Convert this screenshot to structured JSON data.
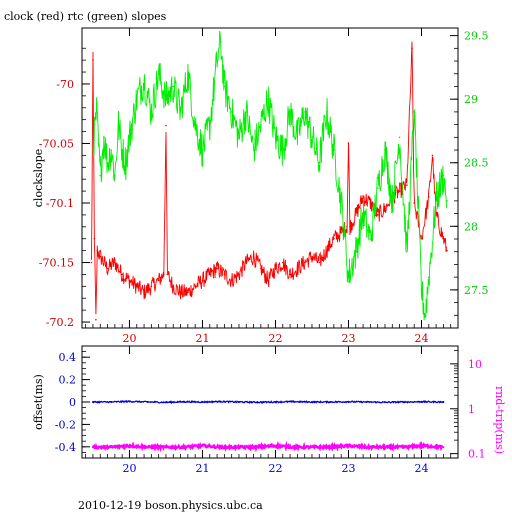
{
  "title": "clock (red) rtc (green) slopes",
  "footer": "2010-12-19  boson.physics.ubc.ca",
  "colors": {
    "clock": "#ff0000",
    "rtc": "#00ee00",
    "offset": "#0000dd",
    "rndtrip": "#ff00ff",
    "top_y_axis": "#cc0000",
    "top_y2_axis": "#00cc00",
    "x_axis_top": "#cc0000",
    "x_axis_bottom": "#0000cc",
    "frame": "#000000"
  },
  "chart_data": [
    {
      "type": "line",
      "title": "clock (red) rtc (green) slopes",
      "ylabel": "clockslope",
      "y2label": "",
      "grid": false,
      "xlim": [
        19.35,
        24.5
      ],
      "ylim": [
        -70.205,
        -69.953
      ],
      "y2lim": [
        27.2,
        29.56
      ],
      "x_ticks": [
        "20",
        "21",
        "22",
        "23",
        "24"
      ],
      "y_ticks": [
        "-70",
        "-70.05",
        "-70.1",
        "-70.15",
        "-70.2"
      ],
      "y2_ticks": [
        "29.5",
        "29",
        "28.5",
        "28",
        "27.5"
      ],
      "series": [
        {
          "axis": "left",
          "x": [
            19.48,
            19.5,
            19.52,
            19.54,
            19.56,
            19.6,
            19.7,
            19.8,
            19.9,
            20.0,
            20.1,
            20.2,
            20.3,
            20.4,
            20.47,
            20.5,
            20.52,
            20.6,
            20.7,
            20.8,
            20.9,
            21.0,
            21.1,
            21.2,
            21.3,
            21.4,
            21.5,
            21.6,
            21.7,
            21.8,
            21.9,
            22.0,
            22.1,
            22.2,
            22.3,
            22.4,
            22.5,
            22.6,
            22.7,
            22.8,
            22.9,
            22.98,
            23.0,
            23.02,
            23.1,
            23.2,
            23.3,
            23.4,
            23.5,
            23.6,
            23.7,
            23.8,
            23.87,
            23.9,
            24.0,
            24.1,
            24.15,
            24.2,
            24.3,
            24.35
          ],
          "values": [
            -70.15,
            -69.98,
            -70.13,
            -70.198,
            -70.14,
            -70.145,
            -70.155,
            -70.15,
            -70.16,
            -70.165,
            -70.17,
            -70.175,
            -70.17,
            -70.165,
            -70.16,
            -70.035,
            -70.16,
            -70.17,
            -70.175,
            -70.175,
            -70.17,
            -70.165,
            -70.16,
            -70.155,
            -70.16,
            -70.165,
            -70.16,
            -70.15,
            -70.145,
            -70.155,
            -70.165,
            -70.155,
            -70.15,
            -70.16,
            -70.155,
            -70.15,
            -70.145,
            -70.15,
            -70.14,
            -70.13,
            -70.125,
            -70.12,
            -70.05,
            -70.12,
            -70.11,
            -70.095,
            -70.1,
            -70.11,
            -70.105,
            -70.095,
            -70.09,
            -70.085,
            -69.97,
            -70.1,
            -70.13,
            -70.095,
            -70.06,
            -70.11,
            -70.13,
            -70.14
          ]
        },
        {
          "axis": "right",
          "x": [
            19.5,
            19.55,
            19.6,
            19.65,
            19.7,
            19.75,
            19.8,
            19.85,
            19.9,
            19.95,
            20.0,
            20.1,
            20.2,
            20.3,
            20.4,
            20.5,
            20.6,
            20.7,
            20.8,
            20.9,
            21.0,
            21.1,
            21.2,
            21.25,
            21.3,
            21.4,
            21.5,
            21.6,
            21.7,
            21.8,
            21.9,
            22.0,
            22.1,
            22.2,
            22.3,
            22.4,
            22.5,
            22.6,
            22.7,
            22.8,
            22.9,
            23.0,
            23.1,
            23.2,
            23.3,
            23.4,
            23.5,
            23.6,
            23.7,
            23.8,
            23.9,
            24.0,
            24.05,
            24.1,
            24.2,
            24.3,
            24.35
          ],
          "values": [
            28.6,
            28.9,
            28.4,
            28.7,
            28.5,
            28.6,
            28.4,
            28.8,
            28.6,
            28.5,
            28.7,
            29.0,
            29.15,
            28.9,
            29.2,
            29.0,
            29.1,
            28.9,
            29.2,
            28.8,
            28.6,
            28.8,
            29.3,
            29.45,
            29.1,
            28.9,
            28.7,
            28.9,
            28.6,
            28.8,
            29.0,
            28.7,
            28.6,
            28.9,
            28.7,
            28.9,
            28.7,
            28.5,
            28.9,
            28.6,
            28.2,
            27.6,
            27.8,
            28.1,
            27.9,
            28.3,
            28.6,
            28.2,
            28.7,
            27.8,
            28.9,
            27.5,
            27.3,
            27.6,
            28.2,
            28.4,
            28.2
          ]
        }
      ]
    },
    {
      "type": "scatter",
      "ylabel": "offset(ms)",
      "y2label": "rnd-trip(ms)",
      "grid": false,
      "xlim": [
        19.35,
        24.5
      ],
      "ylim": [
        -0.5,
        0.5
      ],
      "y2_log": true,
      "y2lim": [
        0.08,
        25
      ],
      "x_ticks": [
        "20",
        "21",
        "22",
        "23",
        "24"
      ],
      "y_ticks": [
        "0.4",
        "0.2",
        "0",
        "-0.2",
        "-0.4"
      ],
      "y2_ticks": [
        "10",
        "1",
        "0.1"
      ],
      "series": [
        {
          "axis": "left",
          "x": [
            19.5,
            19.75,
            20.0,
            20.25,
            20.5,
            20.75,
            21.0,
            21.25,
            21.5,
            21.75,
            22.0,
            22.25,
            22.5,
            22.75,
            23.0,
            23.25,
            23.5,
            23.75,
            24.0,
            24.3
          ],
          "values": [
            0.0,
            0.0,
            0.005,
            0.0,
            -0.003,
            0.002,
            0.0,
            0.004,
            0.0,
            -0.002,
            0.0,
            0.003,
            0.0,
            0.0,
            0.002,
            0.0,
            -0.003,
            0.0,
            0.002,
            0.0
          ]
        },
        {
          "axis": "right",
          "x": [
            19.5,
            19.75,
            20.0,
            20.25,
            20.5,
            20.75,
            21.0,
            21.25,
            21.5,
            21.75,
            22.0,
            22.25,
            22.5,
            22.75,
            23.0,
            23.25,
            23.5,
            23.75,
            24.0,
            24.3
          ],
          "values": [
            0.14,
            0.14,
            0.15,
            0.14,
            0.14,
            0.14,
            0.15,
            0.14,
            0.14,
            0.14,
            0.15,
            0.14,
            0.14,
            0.14,
            0.15,
            0.14,
            0.14,
            0.14,
            0.15,
            0.14
          ]
        }
      ]
    }
  ]
}
